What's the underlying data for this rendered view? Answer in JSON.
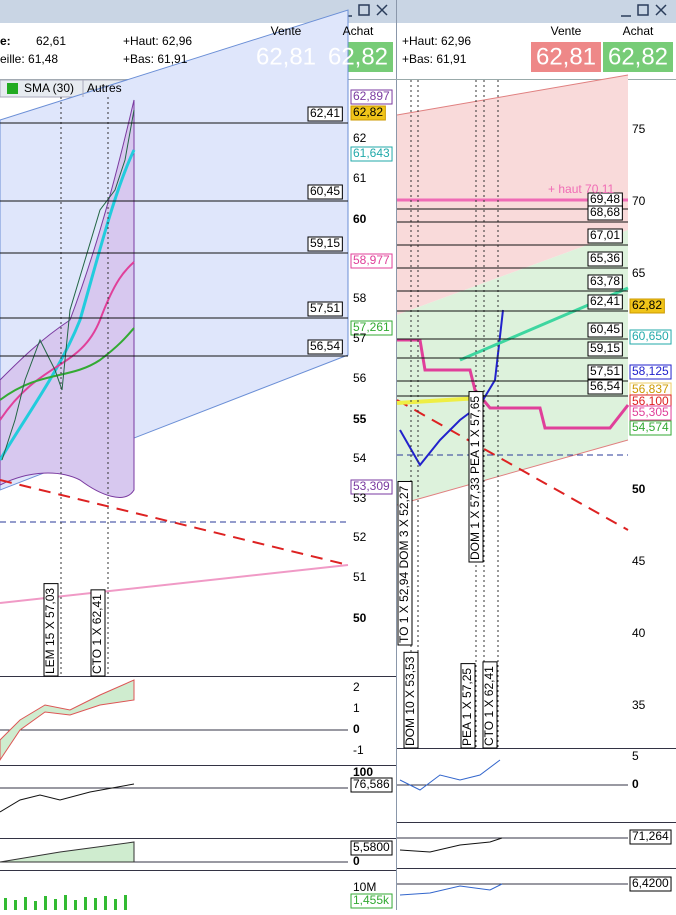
{
  "left_panel": {
    "quote": {
      "row1_label": "e:",
      "row1_value": "62,61",
      "haut": "+Haut: 62,96",
      "row2": "eille: 61,48",
      "bas": "+Bas: 61,91",
      "sell_label": "Vente",
      "buy_label": "Achat",
      "sell": "62,81",
      "buy": "62,82"
    },
    "toolbar": [
      "SMA (30)",
      "Autres"
    ],
    "price_axis": [
      "62,897",
      "62,82",
      "62",
      "61,643",
      "61",
      "60",
      "58,977",
      "58",
      "57,261",
      "57",
      "56",
      "55",
      "54",
      "53,309",
      "53",
      "52",
      "51",
      "50",
      "2",
      "1",
      "0",
      "-1",
      "100",
      "76,586",
      "5,5800",
      "0",
      "10M",
      "1,455k"
    ],
    "levels": [
      "62,41",
      "60,45",
      "59,15",
      "57,51",
      "56,54"
    ],
    "orders": [
      "LEM 15 X 57,03",
      "CTO 1 X 62,41"
    ]
  },
  "right_panel": {
    "quote": {
      "haut": "+Haut: 62,96",
      "bas": "+Bas: 61,91",
      "sell_label": "Vente",
      "buy_label": "Achat",
      "sell": "62,81",
      "buy": "62,82"
    },
    "price_axis": [
      "75",
      "70",
      "65",
      "62,82",
      "60,650",
      "58,125",
      "56,837",
      "56,100",
      "55,305",
      "54,574",
      "50",
      "45",
      "40",
      "35",
      "5",
      "0",
      "71,264",
      "6,4200"
    ],
    "levels": [
      "69,48",
      "68,68",
      "67,01",
      "65,36",
      "63,78",
      "62,41",
      "60,45",
      "59,15",
      "57,51",
      "56,54"
    ],
    "high_note": "+ haut 70,11",
    "orders": [
      "TO 1 X 52,94 DOM 3 X 52,27",
      "DOM 10 X 53,53",
      "PEA 1 X 57,25",
      "DOM 1 X 57,33 PEA 1 X 57,65",
      "CTO 1 X 62,41"
    ]
  }
}
